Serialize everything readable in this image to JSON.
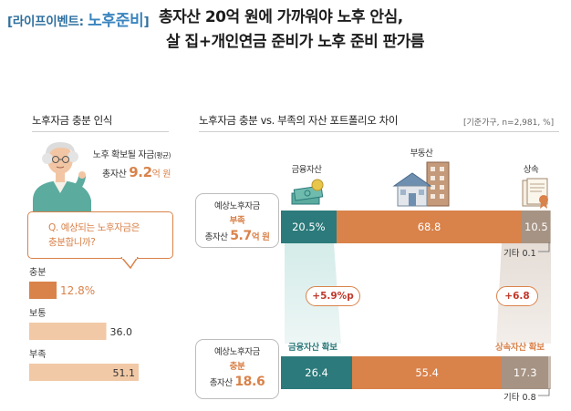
{
  "header": {
    "tag_prefix": "[라이프이벤트: ",
    "tag_main": "노후준비",
    "tag_suffix": "]",
    "title_line1": "총자산 20억 원에 가까워야 노후 안심,",
    "title_line2": "살 집+개인연금 준비가 노후 준비 판가름"
  },
  "left": {
    "heading": "노후자금 충분 인식",
    "avg_label": "노후 확보될 자금",
    "avg_label_small": "(평균)",
    "avg_total_label": "총자산",
    "avg_value": "9.2",
    "avg_unit": "억 원",
    "question_line1": "Q. 예상되는 노후자금은",
    "question_line2": "충분합니까?"
  },
  "right": {
    "heading": "노후자금 충분 vs. 부족의 자산 포트폴리오 차이",
    "basis": "[기준가구, n=2,981, %]",
    "categories": {
      "financial": "금융자산",
      "real_estate": "부동산",
      "inheritance": "상속"
    },
    "row_top": {
      "line1": "예상노후자금",
      "status": "부족",
      "total_label": "총자산",
      "total_value": "5.7",
      "total_unit": "억 원",
      "others": "기타 0.1"
    },
    "row_bottom": {
      "line1": "예상노후자금",
      "status": "충분",
      "total_label": "총자산",
      "total_value": "18.6",
      "others": "기타 0.8"
    },
    "diff_financial": "+5.9%p",
    "diff_inheritance": "+6.8",
    "secure_financial": "금융자산 확보",
    "secure_inheritance": "상속자산 확보"
  },
  "colors": {
    "accent_orange": "#d9824a",
    "light_orange": "#f1c9a6",
    "teal": "#2c7a7b",
    "taupe": "#a69383",
    "header_blue": "#2e6f9e"
  },
  "chart_data": [
    {
      "type": "bar",
      "orientation": "horizontal",
      "categories": [
        "충분",
        "보통",
        "부족"
      ],
      "values": [
        12.8,
        36.0,
        51.1
      ],
      "value_labels": [
        "12.8%",
        "36.0",
        "51.1"
      ]
    },
    {
      "type": "bar",
      "orientation": "horizontal",
      "stacked": true,
      "categories": [
        "부족",
        "충분"
      ],
      "series": [
        {
          "name": "금융자산",
          "values": [
            20.5,
            26.4
          ]
        },
        {
          "name": "부동산",
          "values": [
            68.8,
            55.4
          ]
        },
        {
          "name": "상속",
          "values": [
            10.5,
            17.3
          ]
        },
        {
          "name": "기타",
          "values": [
            0.1,
            0.8
          ]
        }
      ],
      "value_labels": {
        "top": [
          "20.5%",
          "68.8",
          "10.5"
        ],
        "bottom": [
          "26.4",
          "55.4",
          "17.3"
        ]
      },
      "unit": "%"
    }
  ]
}
